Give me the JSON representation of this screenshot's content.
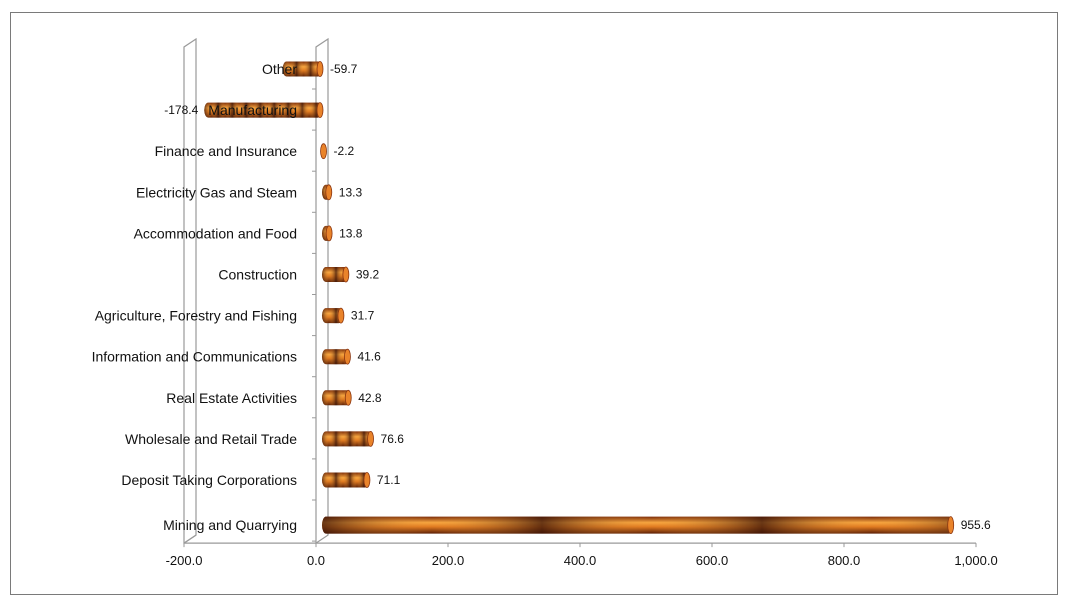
{
  "chart_data": {
    "type": "bar",
    "orientation": "horizontal",
    "style": "3d-cylinder",
    "categories": [
      "Other",
      "Manufacturing",
      "Finance and Insurance",
      "Electricity Gas and Steam",
      "Accommodation and Food",
      "Construction",
      "Agriculture, Forestry and Fishing",
      "Information and Communications",
      "Real Estate Activities",
      "Wholesale and Retail Trade",
      "Deposit Taking Corporations",
      "Mining and Quarrying"
    ],
    "values": [
      -59.7,
      -178.4,
      -2.2,
      13.3,
      13.8,
      39.2,
      31.7,
      41.6,
      42.8,
      76.6,
      71.1,
      955.6
    ],
    "value_labels": [
      "-59.7",
      "-178.4",
      "-2.2",
      "13.3",
      "13.8",
      "39.2",
      "31.7",
      "41.6",
      "42.8",
      "76.6",
      "71.1",
      "955.6"
    ],
    "x_ticks": [
      "-200.0",
      "0.0",
      "200.0",
      "400.0",
      "600.0",
      "800.0",
      "1,000.0"
    ],
    "x_tick_values": [
      -200,
      0,
      200,
      400,
      600,
      800,
      1000
    ],
    "xlim": [
      -200,
      1000
    ],
    "grid": false,
    "legend": "none",
    "colors": {
      "bar_light": "#f5a03a",
      "bar_mid": "#d2661a",
      "bar_dark": "#3a1408",
      "axis": "#9a9a9a",
      "text": "#111111"
    }
  }
}
